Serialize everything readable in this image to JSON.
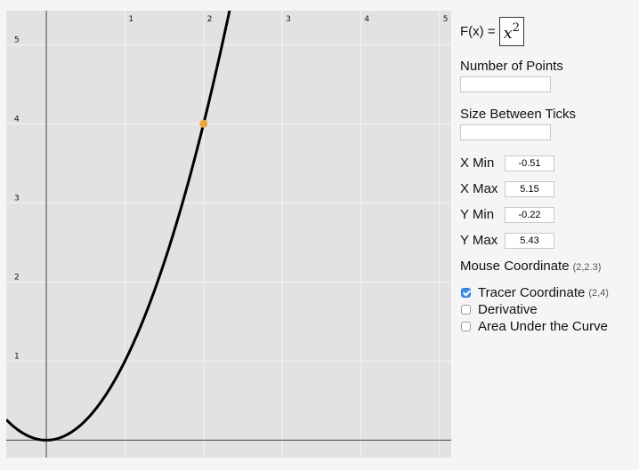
{
  "graph": {
    "x_ticks": [
      "1",
      "2",
      "3",
      "4",
      "5"
    ],
    "y_ticks": [
      "1",
      "2",
      "3",
      "4",
      "5"
    ],
    "x_range": [
      -0.51,
      5.15
    ],
    "y_range": [
      -0.22,
      5.43
    ],
    "tracer_point": {
      "x": 2,
      "y": 4
    },
    "curve_color": "#000000",
    "tracer_color": "#f0a640",
    "grid_color": "#f4f4f4",
    "axis_color": "#444444"
  },
  "panel": {
    "fx_label": "F(x) =",
    "fx_base": "x",
    "fx_exponent": "2",
    "num_points_label": "Number of Points",
    "num_points_value": "",
    "tick_size_label": "Size Between Ticks",
    "tick_size_value": "",
    "xmin_label": "X Min",
    "xmin_value": "-0.51",
    "xmax_label": "X Max",
    "xmax_value": "5.15",
    "ymin_label": "Y Min",
    "ymin_value": "-0.22",
    "ymax_label": "Y Max",
    "ymax_value": "5.43",
    "mouse_label": "Mouse Coordinate",
    "mouse_value": "(2,2.3)",
    "tracer_label": "Tracer Coordinate",
    "tracer_value": "(2,4)",
    "tracer_checked": true,
    "derivative_label": "Derivative",
    "derivative_checked": false,
    "area_label": "Area Under the Curve",
    "area_checked": false
  }
}
